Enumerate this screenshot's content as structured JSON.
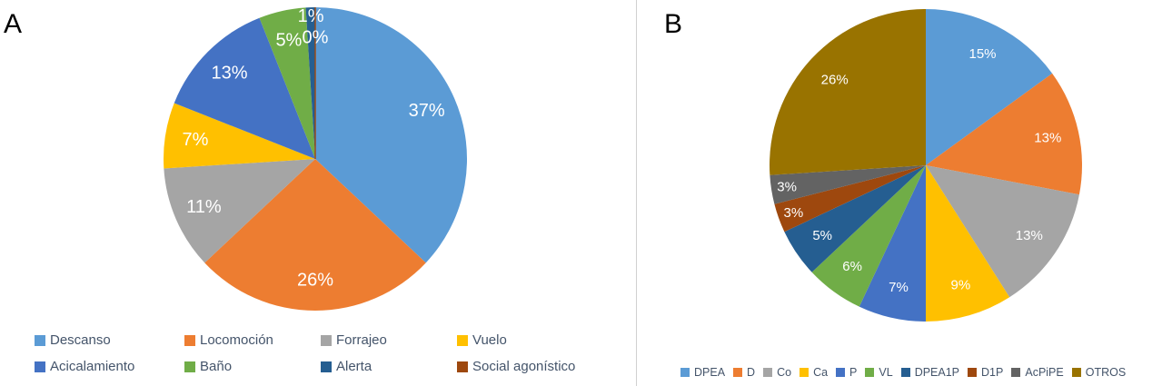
{
  "chart_data": [
    {
      "type": "pie",
      "panel_label": "A",
      "categories": [
        "Descanso",
        "Locomoción",
        "Forrajeo",
        "Vuelo",
        "Acicalamiento",
        "Baño",
        "Alerta",
        "Social agonístico"
      ],
      "values": [
        37,
        26,
        11,
        7,
        13,
        5,
        1,
        0
      ],
      "data_labels": [
        "37%",
        "26%",
        "11%",
        "7%",
        "13%",
        "5%",
        "1%",
        "0%"
      ],
      "colors": [
        "#5B9BD5",
        "#ED7D31",
        "#A5A5A5",
        "#FFC000",
        "#4472C4",
        "#70AD47",
        "#255E91",
        "#9E480E"
      ],
      "start_angle_deg": 0,
      "direction": "clockwise",
      "legend_position": "bottom",
      "data_label_color": "#FFFFFF"
    },
    {
      "type": "pie",
      "panel_label": "B",
      "categories": [
        "DPEA",
        "D",
        "Co",
        "Ca",
        "P",
        "VL",
        "DPEA1P",
        "D1P",
        "AcPiPE",
        "OTROS"
      ],
      "values": [
        15,
        13,
        13,
        9,
        7,
        6,
        5,
        3,
        3,
        26
      ],
      "data_labels": [
        "15%",
        "13%",
        "13%",
        "9%",
        "7%",
        "6%",
        "5%",
        "3%",
        "3%",
        "26%"
      ],
      "colors": [
        "#5B9BD5",
        "#ED7D31",
        "#A5A5A5",
        "#FFC000",
        "#4472C4",
        "#70AD47",
        "#255E91",
        "#9E480E",
        "#636363",
        "#997300"
      ],
      "start_angle_deg": 0,
      "direction": "clockwise",
      "legend_position": "bottom",
      "data_label_color": "#FFFFFF"
    }
  ],
  "legend_text_color": "#44546A"
}
